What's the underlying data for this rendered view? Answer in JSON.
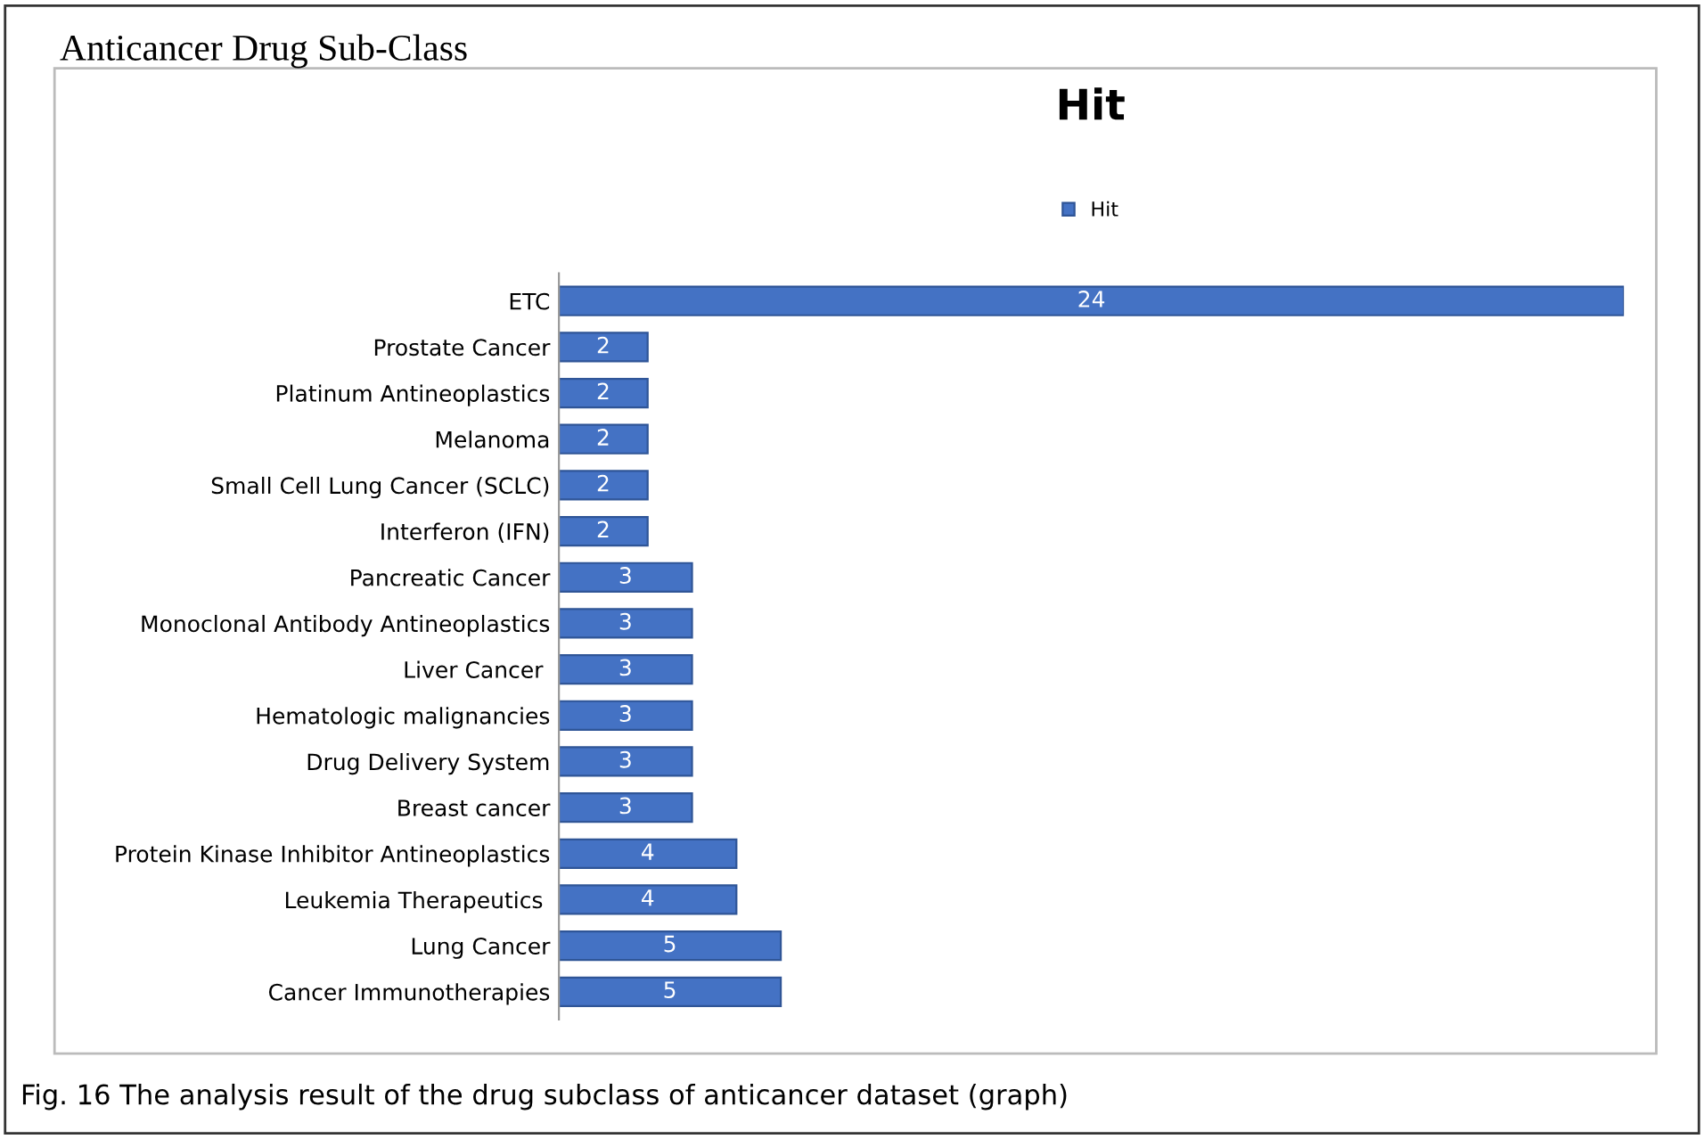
{
  "chart_data": {
    "type": "bar",
    "orientation": "horizontal",
    "title": "Hit",
    "categories": [
      "ETC",
      "Prostate Cancer",
      "Platinum Antineoplastics",
      "Melanoma",
      "Small Cell Lung Cancer (SCLC)",
      "Interferon (IFN)",
      "Pancreatic Cancer",
      "Monoclonal Antibody Antineoplastics",
      "Liver Cancer ",
      "Hematologic malignancies",
      "Drug Delivery System",
      "Breast cancer",
      "Protein Kinase Inhibitor Antineoplastics",
      "Leukemia Therapeutics ",
      "Lung Cancer",
      "Cancer Immunotherapies"
    ],
    "series": [
      {
        "name": "Hit",
        "color": "#4472c4",
        "values": [
          24,
          2,
          2,
          2,
          2,
          2,
          3,
          3,
          3,
          3,
          3,
          3,
          4,
          4,
          5,
          5
        ]
      }
    ],
    "data_labels": true,
    "legend": "top",
    "grid": false,
    "annotations": [
      "Anticancer Drug Sub-Class",
      "Fig. 16 The analysis result of the drug subclass of anticancer dataset (graph)"
    ]
  }
}
